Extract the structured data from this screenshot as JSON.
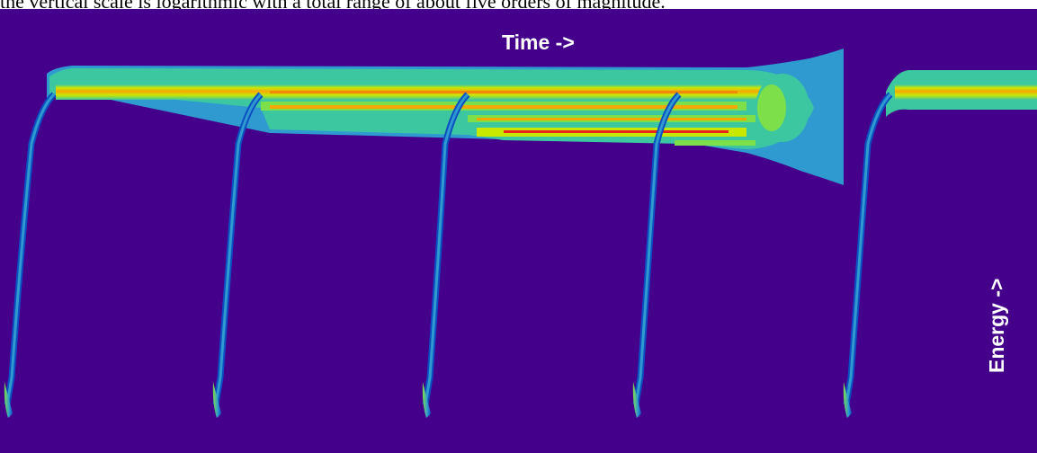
{
  "caption": "the vertical scale is logarithmic with a total range of about five orders of magnitude.",
  "chart_data": {
    "type": "heatmap",
    "xlabel": "Time ->",
    "ylabel": "Energy ->",
    "scale": "logarithmic",
    "pulses": [
      {
        "decay": "single-line",
        "band_end": 1.0
      },
      {
        "decay": "single-line",
        "band_end": 0.47
      },
      {
        "decay": "multi-band",
        "band_end": 0.67
      },
      {
        "decay": "multi-band",
        "band_end": 0.81
      },
      {
        "decay": "single-line",
        "band_end": 1.0
      }
    ],
    "colormap": [
      "#44008a",
      "#0c4fc1",
      "#2f9ad0",
      "#3cc7a0",
      "#7ddf4a",
      "#c8e800",
      "#f5a800",
      "#f08a00",
      "#e8261a"
    ]
  }
}
